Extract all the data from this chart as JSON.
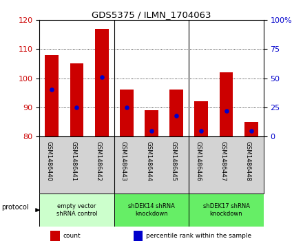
{
  "title": "GDS5375 / ILMN_1704063",
  "samples": [
    "GSM1486440",
    "GSM1486441",
    "GSM1486442",
    "GSM1486443",
    "GSM1486444",
    "GSM1486445",
    "GSM1486446",
    "GSM1486447",
    "GSM1486448"
  ],
  "counts": [
    108,
    105,
    117,
    96,
    89,
    96,
    92,
    102,
    85
  ],
  "percentiles": [
    40,
    25,
    51,
    25,
    5,
    18,
    5,
    22,
    5
  ],
  "ylim_left": [
    80,
    120
  ],
  "ylim_right": [
    0,
    100
  ],
  "yticks_left": [
    80,
    90,
    100,
    110,
    120
  ],
  "yticks_right": [
    0,
    25,
    50,
    75,
    100
  ],
  "bar_color": "#cc0000",
  "dot_color": "#0000cc",
  "bg_color": "#ffffff",
  "plot_bg": "#ffffff",
  "tick_bg": "#d3d3d3",
  "protocol_groups": [
    {
      "label": "empty vector\nshRNA control",
      "start": 0,
      "end": 3,
      "color": "#ccffcc"
    },
    {
      "label": "shDEK14 shRNA\nknockdown",
      "start": 3,
      "end": 6,
      "color": "#66ee66"
    },
    {
      "label": "shDEK17 shRNA\nknockdown",
      "start": 6,
      "end": 9,
      "color": "#66ee66"
    }
  ],
  "protocol_label": "protocol",
  "legend_items": [
    {
      "color": "#cc0000",
      "label": "count"
    },
    {
      "color": "#0000cc",
      "label": "percentile rank within the sample"
    }
  ],
  "tick_label_color_left": "#cc0000",
  "tick_label_color_right": "#0000cc",
  "n_samples": 9
}
